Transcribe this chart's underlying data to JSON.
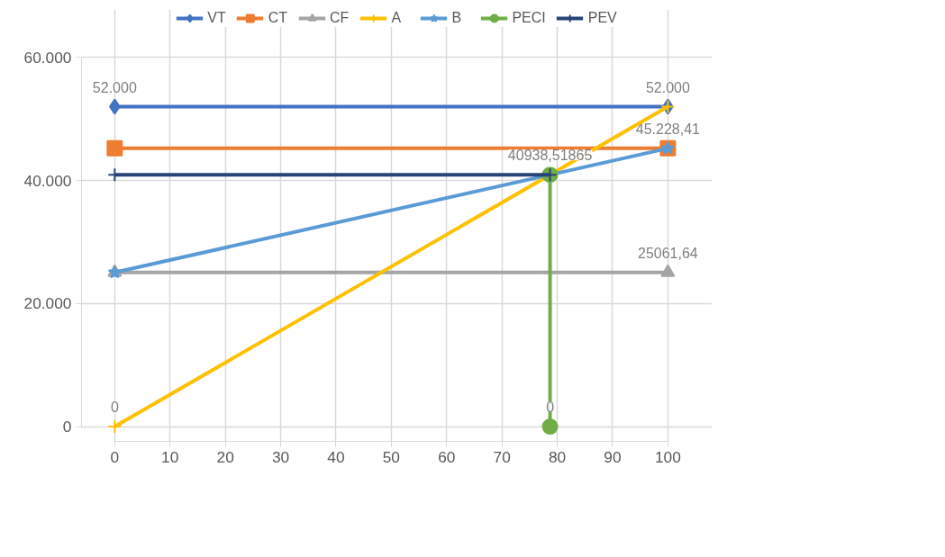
{
  "chart_data": {
    "type": "line",
    "xlim": [
      0,
      100
    ],
    "xticks": [
      0,
      10,
      20,
      30,
      40,
      50,
      60,
      70,
      80,
      90,
      100
    ],
    "ylim": [
      0,
      60000
    ],
    "yticks": [
      0,
      {
        "value": 20000,
        "label": "20.000"
      },
      {
        "value": 40000,
        "label": "40.000"
      },
      {
        "value": 60000,
        "label": "60.000"
      }
    ],
    "grid": true,
    "legend": "top",
    "series": [
      {
        "name": "VT",
        "color": "#4472c4",
        "marker": "diamond",
        "x": [
          0,
          100
        ],
        "values": [
          52000,
          52000
        ],
        "value_labels": [
          "52.000",
          "52.000"
        ]
      },
      {
        "name": "CT",
        "color": "#ed7d31",
        "marker": "square",
        "x": [
          0,
          100
        ],
        "values": [
          45228.41,
          45228.41
        ],
        "value_labels": [
          null,
          "45.228,41"
        ]
      },
      {
        "name": "CF",
        "color": "#a5a5a5",
        "marker": "triangle",
        "x": [
          0,
          100
        ],
        "values": [
          25061.64,
          25061.64
        ],
        "value_labels": [
          null,
          "25061,64"
        ]
      },
      {
        "name": "A",
        "color": "#ffc000",
        "marker": "cross",
        "x": [
          0,
          100
        ],
        "values": [
          0,
          52000
        ],
        "value_labels": [
          "0",
          null
        ]
      },
      {
        "name": "B",
        "color": "#5b9bd5",
        "marker": "star",
        "x": [
          0,
          100
        ],
        "values": [
          25061.64,
          45228.41
        ]
      },
      {
        "name": "PECI",
        "color": "#70ad47",
        "marker": "circle",
        "x": [
          78.7,
          78.7
        ],
        "values": [
          0,
          40938.51865
        ],
        "value_labels": [
          "0",
          "40938,51865"
        ]
      },
      {
        "name": "PEV",
        "color": "#264478",
        "marker": "cross",
        "x": [
          0,
          78.7
        ],
        "values": [
          40938.51865,
          40938.51865
        ]
      }
    ]
  }
}
